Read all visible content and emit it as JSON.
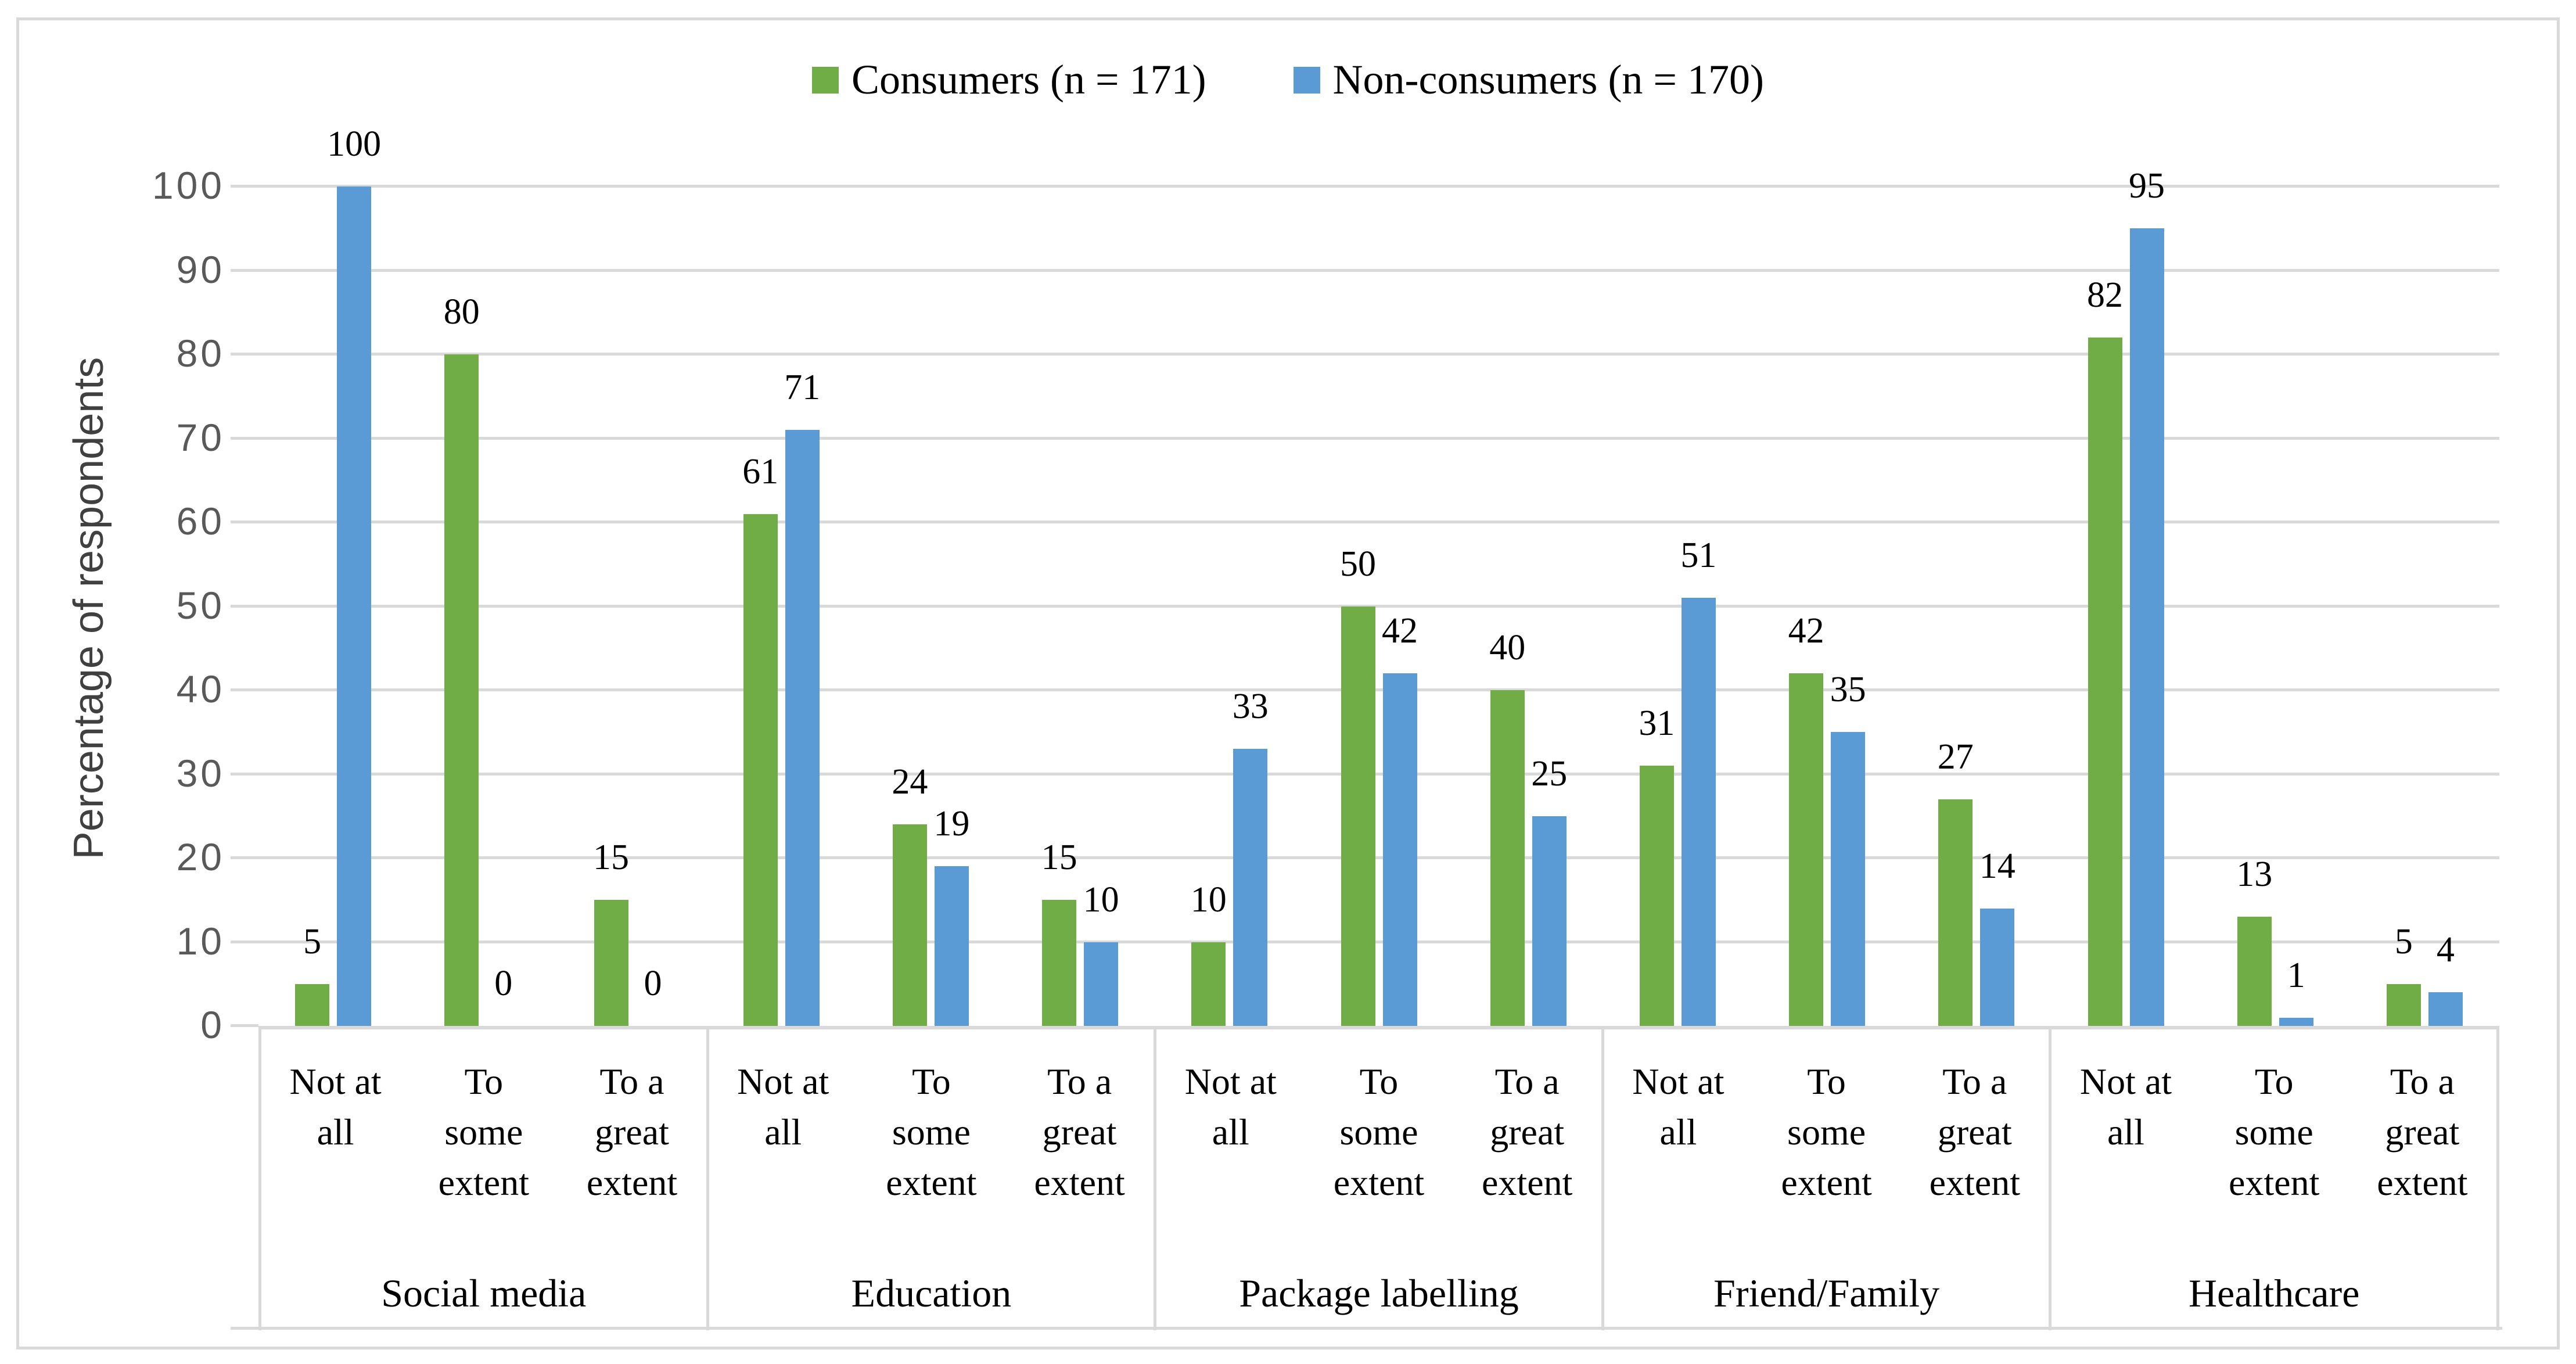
{
  "chart_data": {
    "type": "bar",
    "title": "",
    "ylabel": "Percentage of respondents",
    "xlabel": "",
    "ylim": [
      0,
      100
    ],
    "yticks": [
      0,
      10,
      20,
      30,
      40,
      50,
      60,
      70,
      80,
      90,
      100
    ],
    "grid": true,
    "legend_position": "top-center",
    "groups": [
      "Social media",
      "Education",
      "Package labelling",
      "Friend/Family",
      "Healthcare"
    ],
    "subcategories": [
      "Not at all",
      "To some extent",
      "To a great extent"
    ],
    "series": [
      {
        "name": "Consumers (n = 171)",
        "color": "#70AD47",
        "values": [
          [
            5,
            80,
            15
          ],
          [
            61,
            24,
            15
          ],
          [
            10,
            50,
            40
          ],
          [
            31,
            42,
            27
          ],
          [
            82,
            13,
            5
          ]
        ]
      },
      {
        "name": "Non-consumers (n = 170)",
        "color": "#5B9BD5",
        "values": [
          [
            100,
            0,
            0
          ],
          [
            71,
            19,
            10
          ],
          [
            33,
            42,
            25
          ],
          [
            51,
            35,
            14
          ],
          [
            95,
            1,
            4
          ]
        ]
      }
    ],
    "colors": {
      "gridline": "#D9D9D9",
      "axis_line": "#D9D9D9",
      "tick_label": "#595959",
      "data_label": "#000000",
      "axis_title": "#404040",
      "legend_text": "#000000",
      "border": "#D9D9D9",
      "background": "#FFFFFF"
    }
  }
}
